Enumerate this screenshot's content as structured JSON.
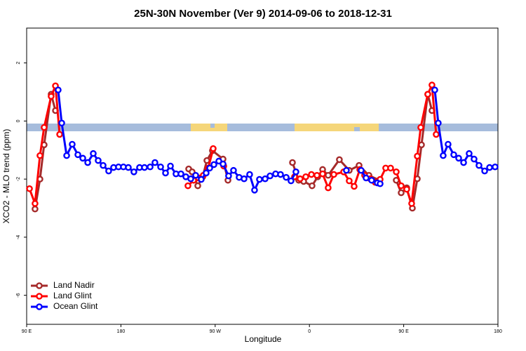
{
  "chart_data": {
    "type": "line",
    "title": "25N-30N November (Ver 9)   2014-09-06 to 2018-12-31",
    "x_label": "Longitude",
    "y_label": "XCO2 - MLO trend (ppm)",
    "xlim": [
      90,
      540
    ],
    "ylim": [
      -7,
      3.2
    ],
    "xticks": [
      {
        "value": 90,
        "label": "90 E"
      },
      {
        "value": 180,
        "label": "180"
      },
      {
        "value": 270,
        "label": "90 W"
      },
      {
        "value": 360,
        "label": "0"
      },
      {
        "value": 450,
        "label": "90 E"
      },
      {
        "value": 540,
        "label": "180"
      }
    ],
    "yticks": [
      -6,
      -4,
      -2,
      0,
      2
    ],
    "legend": "bottom-left",
    "series": [
      {
        "name": "Land Nadir",
        "color": "#a52a2a",
        "x": [
          98,
          102.7,
          106.7,
          113.4,
          117.5,
          null,
          244.7,
          248,
          253.4,
          258.1,
          262.1,
          267.4,
          277.5,
          282.2,
          null,
          343.8,
          349.8,
          354.5,
          362.5,
          367.9,
          372.6,
          377.9,
          388.6,
          398,
          407.4,
          416.8,
          426.8,
          null,
          442.9,
          447.6,
          452.9,
          458.3,
          463,
          467,
          473,
          477
        ],
        "values": [
          -3.03,
          -2.0,
          -0.82,
          0.92,
          0.36,
          null,
          -1.65,
          -1.75,
          -2.23,
          -1.92,
          -1.36,
          -1.02,
          -1.31,
          -2.04,
          null,
          -1.43,
          -2.04,
          -2.08,
          -2.23,
          -1.92,
          -1.67,
          -1.87,
          -1.33,
          -1.7,
          -1.53,
          -1.87,
          -2.04,
          null,
          -2.04,
          -2.47,
          -2.3,
          -3.0,
          -1.99,
          -0.82,
          0.92,
          0.36
        ]
      },
      {
        "name": "Land Glint",
        "color": "#ff0000",
        "x": [
          92.7,
          98,
          102.7,
          106.7,
          113.4,
          117.5,
          121.5,
          null,
          244,
          249.4,
          254,
          258.7,
          263.4,
          268.1,
          null,
          278.2,
          null,
          345.8,
          351.1,
          356.5,
          361.9,
          367.2,
          372.6,
          377.9,
          383.3,
          392.7,
          398,
          402.7,
          408.1,
          412.7,
          418.1,
          422.8,
          427.5,
          432.8,
          437.5,
          442.9,
          447.6,
          452.9,
          457.6,
          463,
          466.3,
          473,
          477,
          481
        ],
        "values": [
          -2.33,
          -2.84,
          -1.19,
          -0.22,
          0.85,
          1.21,
          -0.46,
          null,
          -2.23,
          -2.04,
          -1.96,
          -1.87,
          -1.62,
          -0.95,
          null,
          -1.55,
          null,
          -1.92,
          -1.99,
          -1.92,
          -1.84,
          -1.87,
          -1.82,
          -2.3,
          -1.84,
          -1.75,
          -2.06,
          -2.25,
          -1.67,
          -1.87,
          -1.99,
          -2.11,
          -2.01,
          -1.62,
          -1.62,
          -1.75,
          -2.23,
          -2.35,
          -2.84,
          -1.21,
          -0.22,
          0.92,
          1.24,
          -0.46
        ]
      },
      {
        "name": "Ocean Glint",
        "color": "#0000ff",
        "x": [
          120.1,
          123.5,
          128.2,
          133.5,
          138.9,
          143.6,
          148.3,
          153.6,
          158.3,
          163,
          168.3,
          173,
          177.7,
          182.4,
          187.1,
          192.4,
          197.8,
          202.5,
          207.9,
          212.5,
          217.9,
          222.6,
          227.3,
          232.6,
          237.3,
          242,
          246.7,
          251.4,
          256.7,
          261.4,
          264.8,
          268.8,
          273.5,
          277.5,
          282.8,
          287.5,
          292.9,
          297.6,
          302.9,
          307.6,
          312.3,
          317.7,
          322.4,
          327.7,
          332.4,
          337.8,
          342.4,
          347.1,
          null,
          395.3,
          null,
          409.4,
          414.1,
          419.4,
          424.8,
          427.5,
          null,
          479.7,
          483,
          487.7,
          492.4,
          497.8,
          502.5,
          507.2,
          512.5,
          517.2,
          521.9,
          527.3,
          532,
          537.3
        ],
        "values": [
          1.07,
          -0.07,
          -1.19,
          -0.8,
          -1.16,
          -1.28,
          -1.43,
          -1.12,
          -1.36,
          -1.53,
          -1.72,
          -1.6,
          -1.58,
          -1.58,
          -1.6,
          -1.75,
          -1.6,
          -1.6,
          -1.58,
          -1.43,
          -1.58,
          -1.79,
          -1.55,
          -1.82,
          -1.82,
          -1.92,
          -1.99,
          -1.87,
          -2.01,
          -1.79,
          -1.62,
          -1.5,
          -1.38,
          -1.48,
          -1.89,
          -1.7,
          -1.94,
          -1.99,
          -1.84,
          -2.38,
          -2.01,
          -1.99,
          -1.89,
          -1.82,
          -1.84,
          -1.94,
          -2.06,
          -1.75,
          null,
          -1.7,
          null,
          -1.7,
          -1.96,
          -2.04,
          -2.13,
          -2.16,
          null,
          1.07,
          -0.07,
          -1.19,
          -0.8,
          -1.16,
          -1.28,
          -1.43,
          -1.12,
          -1.31,
          -1.53,
          -1.72,
          -1.6,
          -1.58
        ]
      }
    ]
  }
}
